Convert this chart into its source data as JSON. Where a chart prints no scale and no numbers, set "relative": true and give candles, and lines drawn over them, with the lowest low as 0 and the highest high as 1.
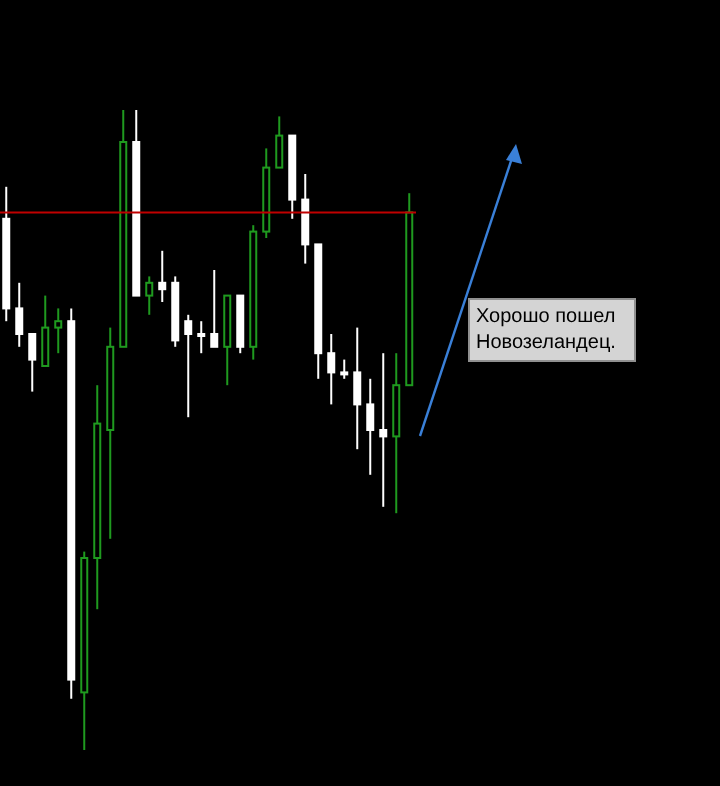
{
  "chart_data": {
    "type": "candlestick",
    "relative": true,
    "categories": [
      null,
      null,
      null,
      null,
      null,
      null,
      null,
      null,
      null,
      null,
      null,
      null,
      null,
      null,
      null,
      null,
      null,
      null,
      null,
      null,
      null,
      null,
      null,
      null,
      null,
      null,
      null,
      null,
      null,
      null,
      null,
      null
    ],
    "ohlc": [
      [
        0.83,
        0.88,
        0.67,
        0.69
      ],
      [
        0.69,
        0.73,
        0.63,
        0.65
      ],
      [
        0.65,
        0.65,
        0.56,
        0.61
      ],
      [
        0.6,
        0.71,
        0.6,
        0.66
      ],
      [
        0.66,
        0.69,
        0.62,
        0.67
      ],
      [
        0.67,
        0.69,
        0.08,
        0.11
      ],
      [
        0.09,
        0.31,
        0,
        0.3
      ],
      [
        0.3,
        0.57,
        0.22,
        0.51
      ],
      [
        0.5,
        0.66,
        0.33,
        0.63
      ],
      [
        0.63,
        1,
        0.63,
        0.95
      ],
      [
        0.95,
        1,
        0.71,
        0.71
      ],
      [
        0.71,
        0.74,
        0.68,
        0.73
      ],
      [
        0.73,
        0.78,
        0.7,
        0.72
      ],
      [
        0.73,
        0.74,
        0.63,
        0.64
      ],
      [
        0.67,
        0.68,
        0.52,
        0.65
      ],
      [
        0.65,
        0.67,
        0.62,
        0.65
      ],
      [
        0.65,
        0.75,
        0.63,
        0.63
      ],
      [
        0.63,
        0.71,
        0.57,
        0.71
      ],
      [
        0.71,
        0.71,
        0.62,
        0.63
      ],
      [
        0.63,
        0.82,
        0.61,
        0.81
      ],
      [
        0.81,
        0.94,
        0.8,
        0.91
      ],
      [
        0.91,
        0.99,
        0.91,
        0.96
      ],
      [
        0.96,
        0.96,
        0.83,
        0.86
      ],
      [
        0.86,
        0.9,
        0.76,
        0.79
      ],
      [
        0.79,
        0.79,
        0.58,
        0.62
      ],
      [
        0.62,
        0.65,
        0.54,
        0.59
      ],
      [
        0.59,
        0.61,
        0.58,
        0.59
      ],
      [
        0.59,
        0.66,
        0.47,
        0.54
      ],
      [
        0.54,
        0.58,
        0.43,
        0.5
      ],
      [
        0.5,
        0.62,
        0.38,
        0.49
      ],
      [
        0.49,
        0.62,
        0.37,
        0.57
      ],
      [
        0.57,
        0.87,
        0.57,
        0.84
      ]
    ],
    "colors": [
      "#ffffff",
      "#ffffff",
      "#ffffff",
      "#1f9a1f",
      "#1f9a1f",
      "#ffffff",
      "#1f9a1f",
      "#1f9a1f",
      "#1f9a1f",
      "#1f9a1f",
      "#ffffff",
      "#1f9a1f",
      "#ffffff",
      "#ffffff",
      "#ffffff",
      "#ffffff",
      "#ffffff",
      "#1f9a1f",
      "#ffffff",
      "#1f9a1f",
      "#1f9a1f",
      "#1f9a1f",
      "#ffffff",
      "#ffffff",
      "#ffffff",
      "#ffffff",
      "#ffffff",
      "#ffffff",
      "#ffffff",
      "#ffffff",
      "#1f9a1f",
      "#1f9a1f"
    ],
    "ref_lines": [
      {
        "axis": "y",
        "value": 0.84,
        "color": "#c00000"
      }
    ],
    "annotations": [
      "Хорошо пошел Новозеландец."
    ]
  }
}
